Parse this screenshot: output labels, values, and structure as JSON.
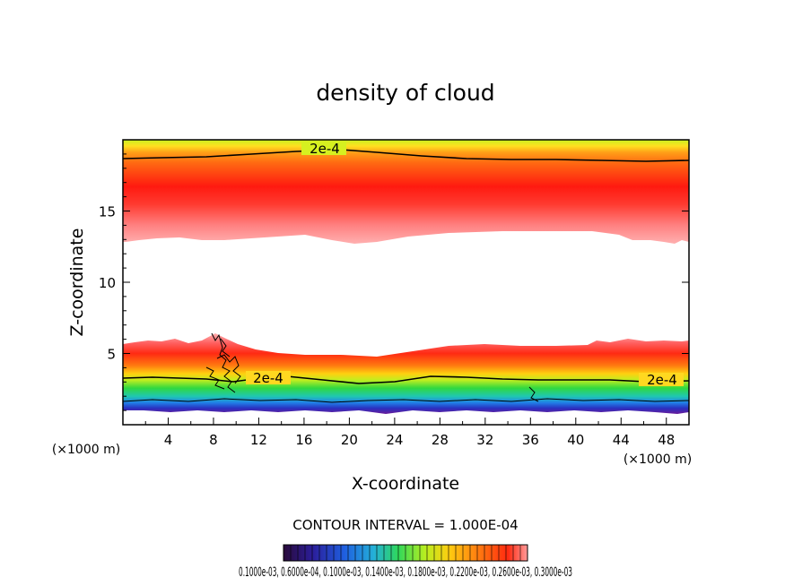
{
  "chart_data": {
    "type": "heatmap",
    "title": "density of cloud",
    "xlabel": "X-coordinate",
    "ylabel": "Z-coordinate",
    "x_unit_label": "(×1000 m)",
    "y_unit_label": "(×1000 m)",
    "xlim": [
      0,
      50
    ],
    "ylim": [
      0,
      20
    ],
    "x_ticks": [
      "4",
      "8",
      "12",
      "16",
      "20",
      "24",
      "28",
      "32",
      "36",
      "40",
      "44",
      "48"
    ],
    "y_ticks": [
      "5",
      "10",
      "15"
    ],
    "contour_interval_text": "CONTOUR INTERVAL = 1.000E-04",
    "contour_labels": [
      "2e-4",
      "2e-4",
      "2e-4"
    ],
    "colorbar_labels_text": "0.1000e-03, 0.6000e-04, 0.1000e-03, 0.1400e-03, 0.1800e-03, 0.2200e-03, 0.2600e-03, 0.3000e-03",
    "colorbar_colors": [
      "#2a0a3a",
      "#2b1e9a",
      "#1f5fe0",
      "#24b0d8",
      "#2fd85a",
      "#b8ee20",
      "#ffcc10",
      "#ff7a10",
      "#ff2a10",
      "#ff9a9a"
    ],
    "regions": [
      {
        "name": "upper layer",
        "z_bottom": 13.0,
        "z_top": 19.7,
        "peak_z": 15.2,
        "dominant_value": "0.3000e-03"
      },
      {
        "name": "lower layer",
        "z_bottom": 0.9,
        "z_top": 5.6,
        "peak_z": 4.5,
        "dominant_value": "0.3000e-03"
      }
    ]
  }
}
